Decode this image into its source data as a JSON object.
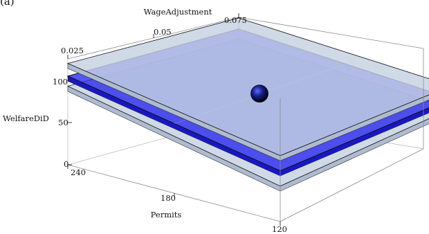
{
  "panel_label": "(a)",
  "chart_data": {
    "type": "surface3d",
    "axes": {
      "wage": {
        "label": "WageAdjustment",
        "ticks": [
          "0.025",
          "0.05",
          "0.075"
        ],
        "range": [
          0.025,
          0.075
        ]
      },
      "permits": {
        "label": "Permits",
        "ticks": [
          "240",
          "180",
          "120"
        ],
        "range": [
          240,
          120
        ]
      },
      "welfare": {
        "label": "WelfareDiD",
        "ticks": [
          "0",
          "50",
          "100"
        ],
        "range": [
          0,
          125
        ]
      }
    },
    "surfaces": [
      {
        "name": "",
        "role": "upper-confidence-band",
        "color": "#c6d2e2",
        "points": [
          {
            "wage": 0.025,
            "permits": 240,
            "welfare": 120
          },
          {
            "wage": 0.075,
            "permits": 240,
            "welfare": 118
          },
          {
            "wage": 0.075,
            "permits": 120,
            "welfare": 105
          },
          {
            "wage": 0.025,
            "permits": 120,
            "welfare": 78
          }
        ]
      },
      {
        "name": "",
        "role": "point-estimate",
        "color": "#2626ee",
        "points": [
          {
            "wage": 0.025,
            "permits": 240,
            "welfare": 105
          },
          {
            "wage": 0.075,
            "permits": 240,
            "welfare": 105
          },
          {
            "wage": 0.075,
            "permits": 120,
            "welfare": 90
          },
          {
            "wage": 0.025,
            "permits": 120,
            "welfare": 60
          }
        ]
      },
      {
        "name": "",
        "role": "lower-confidence-band",
        "color": "#c6d2e2",
        "points": [
          {
            "wage": 0.025,
            "permits": 240,
            "welfare": 93
          },
          {
            "wage": 0.075,
            "permits": 240,
            "welfare": 93
          },
          {
            "wage": 0.075,
            "permits": 120,
            "welfare": 78
          },
          {
            "wage": 0.025,
            "permits": 120,
            "welfare": 42
          }
        ]
      }
    ],
    "marker": {
      "wage": 0.05,
      "permits": 180,
      "welfare": 90,
      "color": "#0a0a3a"
    }
  }
}
